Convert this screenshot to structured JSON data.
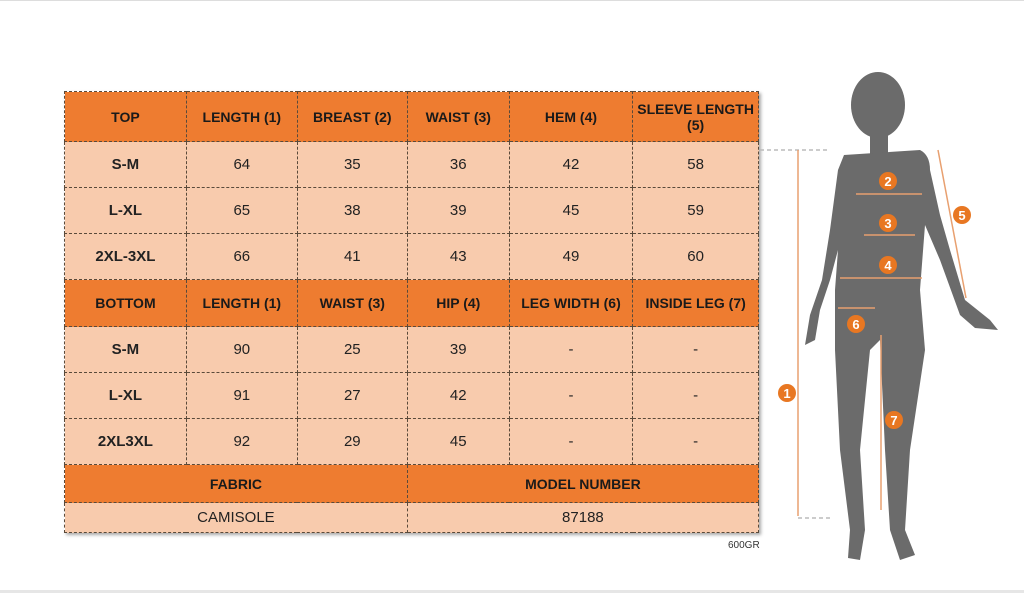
{
  "top": {
    "headers": [
      "TOP",
      "LENGTH (1)",
      "BREAST (2)",
      "WAIST (3)",
      "HEM (4)",
      "SLEEVE LENGTH (5)"
    ],
    "rows": [
      [
        "S-M",
        "64",
        "35",
        "36",
        "42",
        "58"
      ],
      [
        "L-XL",
        "65",
        "38",
        "39",
        "45",
        "59"
      ],
      [
        "2XL-3XL",
        "66",
        "41",
        "43",
        "49",
        "60"
      ]
    ]
  },
  "bottom": {
    "headers": [
      "BOTTOM",
      "LENGTH (1)",
      "WAIST (3)",
      "HIP (4)",
      "LEG WIDTH (6)",
      "INSIDE LEG (7)"
    ],
    "rows": [
      [
        "S-M",
        "90",
        "25",
        "39",
        "-",
        "-"
      ],
      [
        "L-XL",
        "91",
        "27",
        "42",
        "-",
        "-"
      ],
      [
        "2XL3XL",
        "92",
        "29",
        "45",
        "-",
        "-"
      ]
    ]
  },
  "fabric": {
    "label": "FABRIC",
    "value": "CAMISOLE"
  },
  "model": {
    "label": "MODEL NUMBER",
    "value": "87188"
  },
  "weight_note": "600GR",
  "figure": {
    "markers": [
      "1",
      "2",
      "3",
      "4",
      "5",
      "6",
      "7"
    ],
    "accent": "#e87722",
    "silhouette": "#6b6b6b"
  }
}
